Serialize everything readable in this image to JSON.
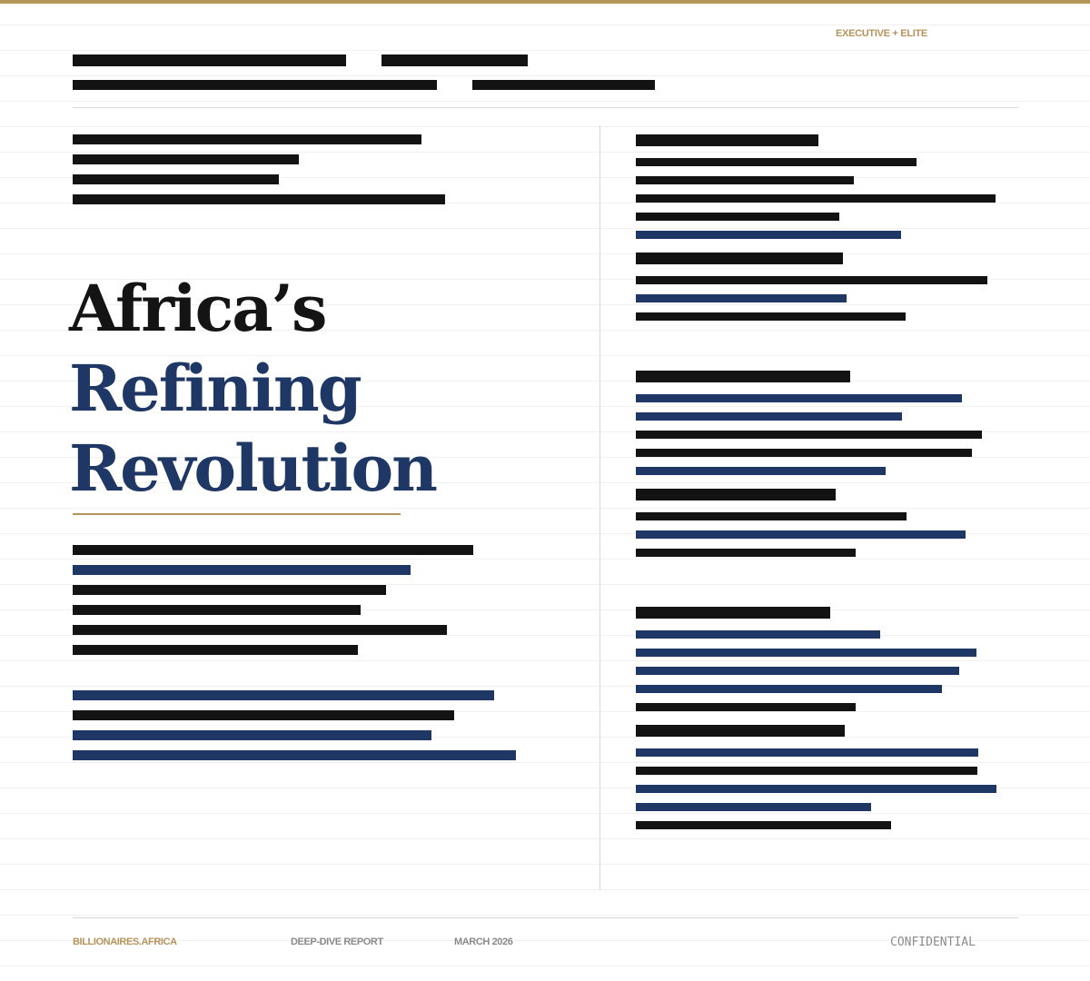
{
  "header": {
    "tier_label": "EXECUTIVE + ELITE"
  },
  "title": {
    "line1": "Africa’s",
    "line2": "Refining",
    "line3": "Revolution"
  },
  "footer": {
    "brand": "BILLIONAIRES.AFRICA",
    "report_type": "DEEP-DIVE REPORT",
    "date": "MARCH 2026",
    "classification": "CONFIDENTIAL"
  },
  "colors": {
    "accent_gold": "#b5945b",
    "navy": "#1f3764",
    "ink": "#131313"
  }
}
